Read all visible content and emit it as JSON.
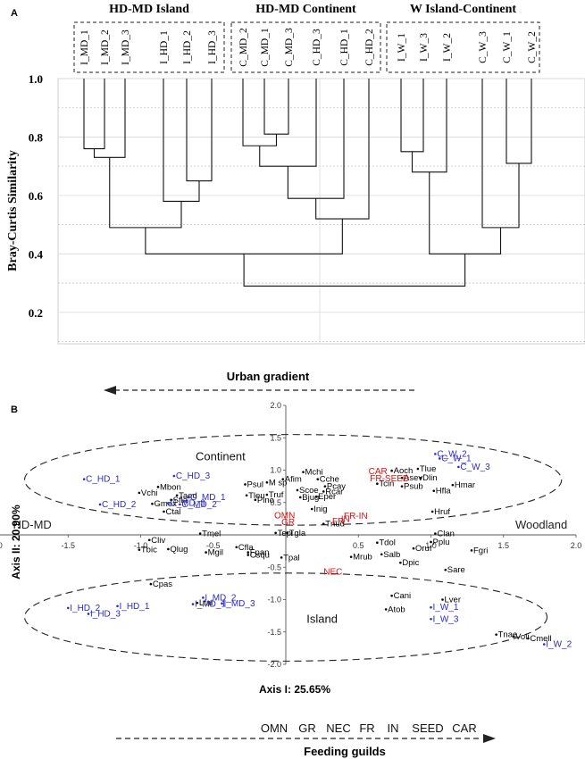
{
  "chart_data": [
    {
      "type": "dendrogram",
      "panel_label": "A",
      "ylabel": "Bray-Curtis Similarity",
      "ylim": [
        0.1,
        1.0
      ],
      "yticks": [
        "1.0",
        "0.8",
        "0.6",
        "0.4",
        "0.2"
      ],
      "ytick_values": [
        1.0,
        0.8,
        0.6,
        0.4,
        0.2
      ],
      "groups": [
        {
          "label": "HD-MD Island",
          "leaves": [
            "I_MD_1",
            "I_MD_2",
            "I_MD_3",
            "I_HD_1",
            "I_HD_2",
            "I_HD_3"
          ]
        },
        {
          "label": "HD-MD Continent",
          "leaves": [
            "C_MD_2",
            "C_MD_1",
            "C_MD_3",
            "C_HD_3",
            "C_HD_1",
            "C_HD_2"
          ]
        },
        {
          "label": "W Island-Continent",
          "leaves": [
            "I_W_1",
            "I_W_3",
            "I_W_2",
            "C_W_3",
            "C_W_1",
            "C_W_2"
          ]
        }
      ],
      "merges": [
        {
          "a": 0,
          "b": 1,
          "h": 0.76
        },
        {
          "a": "m0",
          "b": 2,
          "h": 0.73
        },
        {
          "a": 4,
          "b": 5,
          "h": 0.65
        },
        {
          "a": 3,
          "b": "m2",
          "h": 0.58
        },
        {
          "a": "m1",
          "b": "m3",
          "h": 0.49
        },
        {
          "a": 7,
          "b": 8,
          "h": 0.81
        },
        {
          "a": 6,
          "b": "m5",
          "h": 0.77
        },
        {
          "a": "m6",
          "b": 9,
          "h": 0.7
        },
        {
          "a": "m7",
          "b": 10,
          "h": 0.59
        },
        {
          "a": "m8",
          "b": 11,
          "h": 0.52
        },
        {
          "a": "m4",
          "b": "m9",
          "h": 0.4
        },
        {
          "a": 12,
          "b": 13,
          "h": 0.75
        },
        {
          "a": "m11",
          "b": 14,
          "h": 0.68
        },
        {
          "a": 16,
          "b": 17,
          "h": 0.71
        },
        {
          "a": 15,
          "b": "m13",
          "h": 0.49
        },
        {
          "a": "m12",
          "b": "m14",
          "h": 0.4
        },
        {
          "a": "m10",
          "b": "m15",
          "h": 0.29
        }
      ]
    },
    {
      "type": "scatter",
      "panel_label": "B",
      "xlabel": "Axis I: 25.65%",
      "ylabel": "Axis II: 20.90%",
      "xlim": [
        -2.0,
        2.0
      ],
      "ylim": [
        -2.0,
        2.0
      ],
      "xticks": [
        "-2.0",
        "-1.5",
        "-1.0",
        "-0.5",
        "0.5",
        "1.0",
        "1.5",
        "2.0"
      ],
      "xtick_values": [
        -2.0,
        -1.5,
        -1.0,
        -0.5,
        0.5,
        1.0,
        1.5,
        2.0
      ],
      "yticks": [
        "2.0",
        "1.5",
        "1.0",
        "0.5",
        "-0.5",
        "-1.0",
        "-1.5",
        "-2.0"
      ],
      "ytick_values": [
        2.0,
        1.5,
        1.0,
        0.5,
        -0.5,
        -1.0,
        -1.5,
        -2.0
      ],
      "colors": {
        "species": "#000000",
        "site": "#2a2ac8",
        "guild": "#dd1111",
        "axis": "#555555"
      },
      "ellipses": [
        {
          "label": "Continent",
          "cx": 0.05,
          "cy": 0.85,
          "rx": 1.85,
          "ry": 0.7,
          "label_x": -0.45,
          "label_y": 1.15
        },
        {
          "label": "Island",
          "cx": 0.0,
          "cy": -1.27,
          "rx": 1.8,
          "ry": 0.68,
          "label_x": 0.25,
          "label_y": -1.36
        }
      ],
      "gradient_labels": {
        "left": "HD-MD",
        "right": "Woodland"
      },
      "species": [
        [
          "Mchi",
          0.12,
          0.97
        ],
        [
          "Afim",
          -0.02,
          0.86
        ],
        [
          "Cche",
          0.22,
          0.86
        ],
        [
          "M sp",
          -0.13,
          0.81
        ],
        [
          "Psul",
          -0.28,
          0.78
        ],
        [
          "Pcay",
          0.27,
          0.75
        ],
        [
          "Scoe",
          0.08,
          0.69
        ],
        [
          "Tleu",
          -0.27,
          0.61
        ],
        [
          "Eper",
          0.21,
          0.59
        ],
        [
          "Rcar",
          0.26,
          0.67
        ],
        [
          "Bjug",
          0.1,
          0.58
        ],
        [
          "Truf",
          -0.13,
          0.62
        ],
        [
          "Pino",
          -0.21,
          0.54
        ],
        [
          "Inig",
          0.18,
          0.4
        ],
        [
          "Mbon",
          -0.88,
          0.74
        ],
        [
          "Vchi",
          -1.01,
          0.65
        ],
        [
          "Taed",
          -0.75,
          0.61
        ],
        [
          "Gmex",
          -0.92,
          0.48
        ],
        [
          "Sfla",
          -0.79,
          0.54
        ],
        [
          "Ctal",
          -0.84,
          0.36
        ],
        [
          "Aoch",
          0.73,
          0.99
        ],
        [
          "Tlue",
          0.91,
          1.02
        ],
        [
          "Asev",
          0.8,
          0.88
        ],
        [
          "Dlin",
          0.93,
          0.88
        ],
        [
          "Tcin",
          0.63,
          0.79
        ],
        [
          "Psub",
          0.8,
          0.75
        ],
        [
          "Hfla",
          1.02,
          0.68
        ],
        [
          "Hmar",
          1.15,
          0.77
        ],
        [
          "Hruf",
          1.01,
          0.36
        ],
        [
          "Tnud",
          0.26,
          0.17
        ],
        [
          "Tmel",
          -0.59,
          0.02
        ],
        [
          "Tepi",
          -0.07,
          0.03
        ],
        [
          "Tgla",
          0.01,
          0.03
        ],
        [
          "Cliv",
          -0.94,
          -0.08
        ],
        [
          "Tbic",
          -1.01,
          -0.23
        ],
        [
          "Qlug",
          -0.81,
          -0.22
        ],
        [
          "Mgil",
          -0.55,
          -0.27
        ],
        [
          "Cfla",
          -0.34,
          -0.19
        ],
        [
          "Fpan",
          -0.26,
          -0.27
        ],
        [
          "Csqu",
          -0.26,
          -0.31
        ],
        [
          "Tpal",
          -0.03,
          -0.35
        ],
        [
          "Cpas",
          -0.93,
          -0.76
        ],
        [
          "Lfal",
          -0.61,
          -1.05
        ],
        [
          "Clan",
          1.03,
          0.02
        ],
        [
          "Pplu",
          1.0,
          -0.11
        ],
        [
          "Tdol",
          0.63,
          -0.12
        ],
        [
          "Oruf",
          0.88,
          -0.21
        ],
        [
          "Salb",
          0.66,
          -0.3
        ],
        [
          "Mrub",
          0.45,
          -0.34
        ],
        [
          "Dpic",
          0.79,
          -0.43
        ],
        [
          "Fgri",
          1.28,
          -0.24
        ],
        [
          "Sare",
          1.1,
          -0.54
        ],
        [
          "Cani",
          0.73,
          -0.94
        ],
        [
          "Lver",
          1.08,
          -1.0
        ],
        [
          "Atob",
          0.69,
          -1.15
        ],
        [
          "Tnae",
          1.45,
          -1.54
        ],
        [
          "Voli",
          1.57,
          -1.57
        ],
        [
          "Cmell",
          1.67,
          -1.6
        ]
      ],
      "sites": [
        [
          "C_W_2",
          1.03,
          1.25
        ],
        [
          "C_W_1",
          1.06,
          1.18
        ],
        [
          "C_W_3",
          1.19,
          1.05
        ],
        [
          "C_HD_1",
          -1.39,
          0.86
        ],
        [
          "C_HD_3",
          -0.77,
          0.91
        ],
        [
          "C_HD_2",
          -1.28,
          0.47
        ],
        [
          "C_MD_1",
          -0.67,
          0.58
        ],
        [
          "C_MD_2",
          -0.73,
          0.47
        ],
        [
          "C_MD_3",
          -0.81,
          0.49
        ],
        [
          "I_MD_2",
          -0.57,
          -0.97
        ],
        [
          "I_MD_1",
          -0.64,
          -1.07
        ],
        [
          "I_MD_3",
          -0.44,
          -1.06
        ],
        [
          "I_HD_1",
          -1.16,
          -1.1
        ],
        [
          "I_HD_2",
          -1.5,
          -1.13
        ],
        [
          "I_HD_3",
          -1.36,
          -1.22
        ],
        [
          "I_W_1",
          1.0,
          -1.12
        ],
        [
          "I_W_3",
          1.0,
          -1.3
        ],
        [
          "I_W_2",
          1.78,
          -1.69
        ]
      ],
      "guild_points": [
        [
          "CAR",
          0.57,
          0.98
        ],
        [
          "FR-SEED",
          0.58,
          0.87
        ],
        [
          "FR-IN",
          0.4,
          0.29
        ],
        [
          "FR",
          0.32,
          0.21
        ],
        [
          "IN",
          0.38,
          0.24
        ],
        [
          "OMN",
          -0.08,
          0.3
        ],
        [
          "GR",
          -0.03,
          0.19
        ],
        [
          "NEC",
          0.26,
          -0.57
        ]
      ]
    }
  ],
  "annotations": {
    "urban_gradient": "Urban gradient",
    "feeding_guilds_label": "Feeding guilds",
    "feeding_guilds": [
      "OMN",
      "GR",
      "NEC",
      "FR",
      "IN",
      "SEED",
      "CAR"
    ]
  }
}
